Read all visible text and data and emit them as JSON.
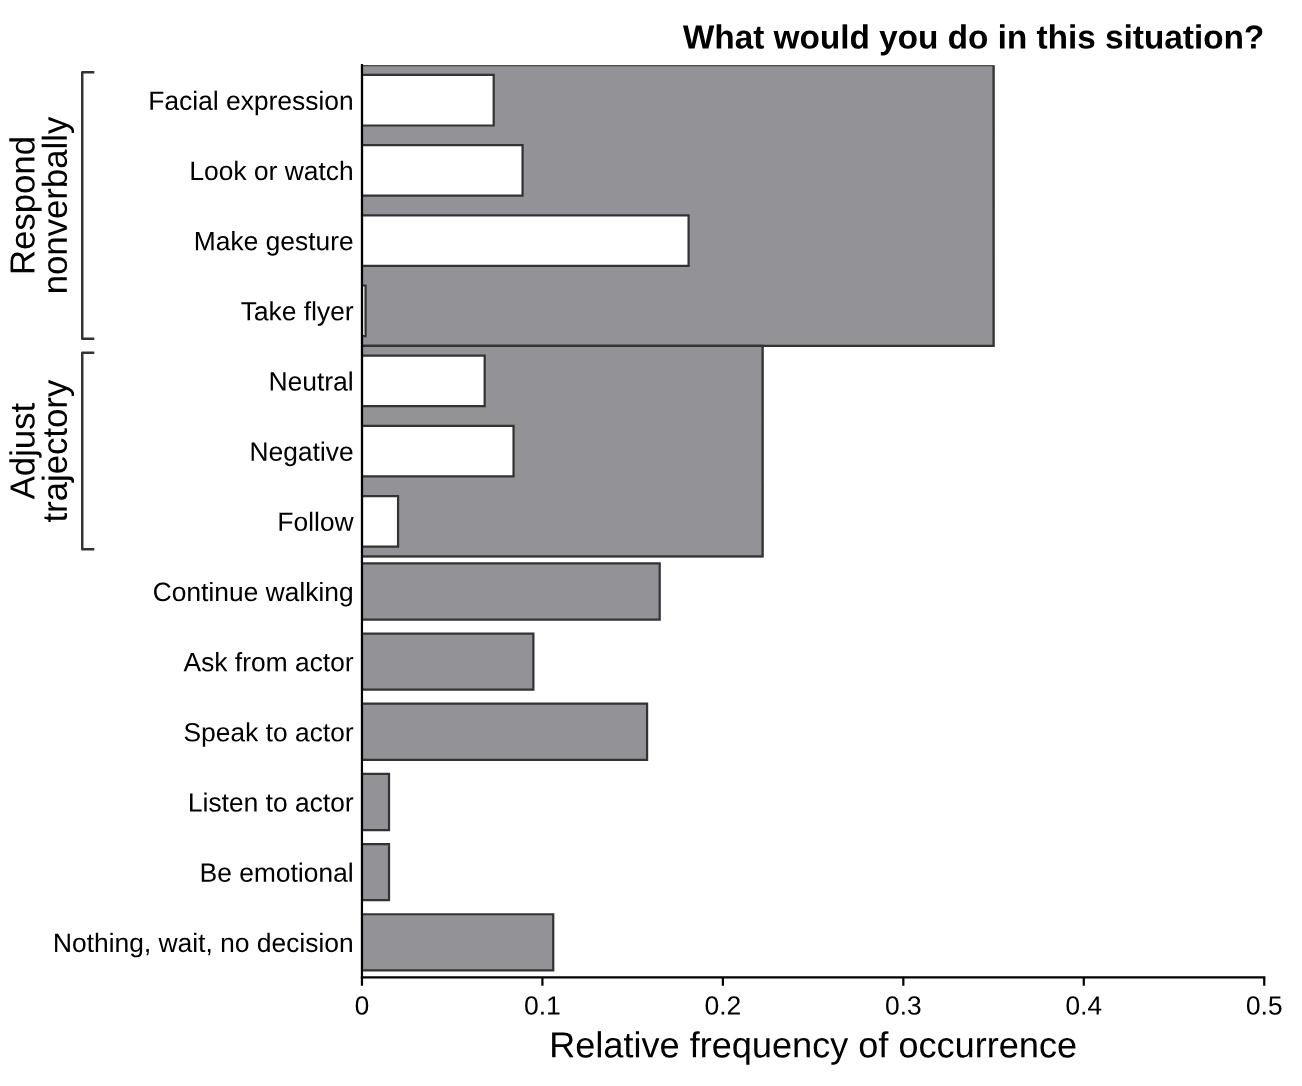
{
  "chart_data": {
    "type": "bar",
    "orientation": "horizontal",
    "title": "What would you do in this situation?",
    "xlabel": "Relative frequency of occurrence",
    "categories": [
      "Facial expression",
      "Look or watch",
      "Make gesture",
      "Take flyer",
      "Neutral",
      "Negative",
      "Follow",
      "Continue walking",
      "Ask from actor",
      "Speak to actor",
      "Listen to actor",
      "Be emotional",
      "Nothing, wait, no decision"
    ],
    "series": [
      {
        "color": "#929297",
        "values": [
          0.35,
          0.35,
          0.35,
          0.35,
          0.222,
          0.222,
          0.222,
          0.165,
          0.095,
          0.158,
          0.015,
          0.015,
          0.106
        ]
      },
      {
        "color": "#ffffff",
        "values": [
          0.073,
          0.089,
          0.181,
          0.002,
          0.068,
          0.084,
          0.02,
          null,
          null,
          null,
          null,
          null,
          null
        ]
      }
    ],
    "annotations": [
      "Respond\nnonverbally",
      "Adjust\ntrajectory"
    ],
    "xlim": [
      0,
      0.5
    ],
    "xticks": [
      0,
      0.1,
      0.2,
      0.3,
      0.4,
      0.5
    ],
    "grid": false,
    "legend": false
  }
}
